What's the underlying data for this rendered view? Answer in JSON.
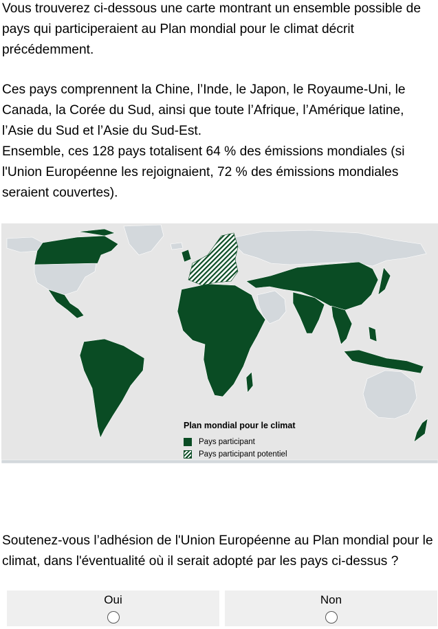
{
  "intro": {
    "paragraph1": "Vous trouverez ci-dessous une carte montrant un ensemble possible de pays qui participeraient au Plan mondial pour le climat décrit précédemment.",
    "paragraph2": "Ces pays comprennent la Chine, l’Inde, le Japon, le Royaume-Uni, le Canada, la Corée du Sud, ainsi que toute l’Afrique, l’Amérique latine, l’Asie du Sud et l’Asie du Sud-Est.",
    "paragraph3": "Ensemble, ces 128 pays totalisent 64 % des émissions mondiales (si l'Union Européenne les rejoignaient, 72 % des émissions mondiales seraient couvertes)."
  },
  "map": {
    "legend_title": "Plan mondial pour le climat",
    "legend_participant": "Pays participant",
    "legend_potential": "Pays participant potentiel",
    "colors": {
      "participant": "#0a4c24",
      "non_participant": "#d3d8dc",
      "ocean": "#e6e6e6"
    }
  },
  "question": {
    "text": "Soutenez-vous l’adhésion de l'Union Européenne au Plan mondial pour le climat, dans l'éventualité où il serait adopté par les pays ci-dessus ?"
  },
  "options": [
    {
      "label": "Oui",
      "selected": false
    },
    {
      "label": "Non",
      "selected": false
    }
  ]
}
